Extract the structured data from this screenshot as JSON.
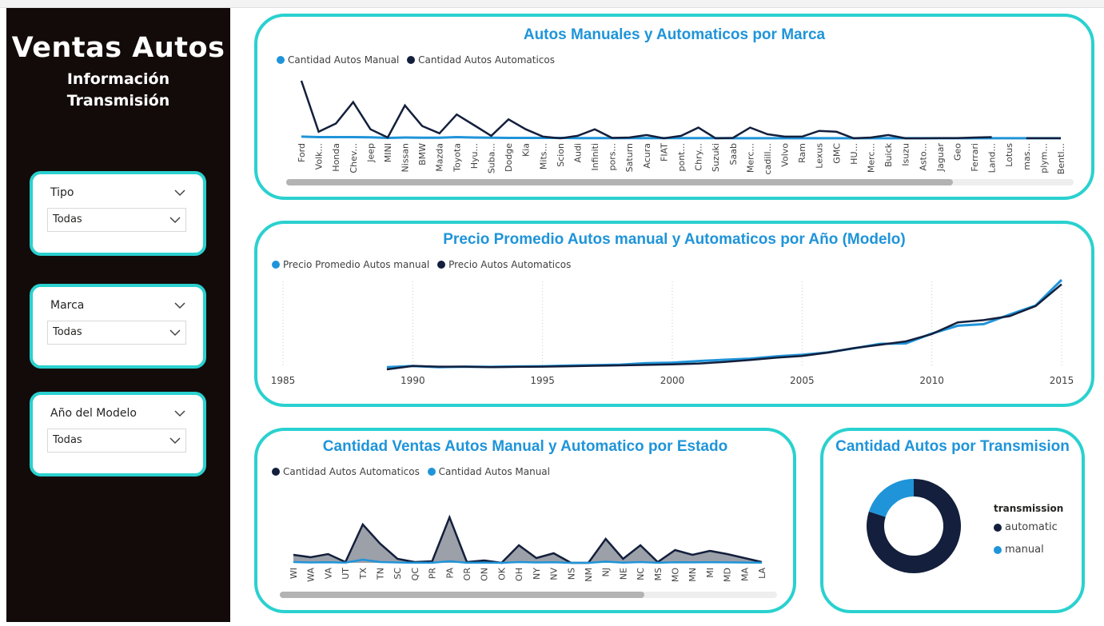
{
  "sidebar": {
    "title": "Ventas Autos",
    "subtitle_line1": "Información",
    "subtitle_line2": "Transmisión",
    "slicers": [
      {
        "label": "Tipo",
        "value": "Todas"
      },
      {
        "label": "Marca",
        "value": "Todas"
      },
      {
        "label": "Año del Modelo",
        "value": "Todas"
      }
    ]
  },
  "colors": {
    "manual": "#1f94d9",
    "automatic": "#131f3c",
    "accent": "#2ad1cf",
    "area_fill": "#8b8f99"
  },
  "chart_data": [
    {
      "id": "marca",
      "type": "line",
      "title": "Autos Manuales y Automaticos por Marca",
      "categories": [
        "Ford",
        "Volk...",
        "Honda",
        "Chev...",
        "Jeep",
        "MINI",
        "Nissan",
        "BMW",
        "Mazda",
        "Toyota",
        "Hyu...",
        "Suba...",
        "Dodge",
        "Kia",
        "Mits...",
        "Scion",
        "Audi",
        "Infiniti",
        "pors...",
        "Saturn",
        "Acura",
        "FIAT",
        "pont...",
        "Chry...",
        "Suzuki",
        "Saab",
        "Merc...",
        "cadill...",
        "Volvo",
        "Ram",
        "Lexus",
        "GMC",
        "HU...",
        "Merc...",
        "Buick",
        "Isuzu",
        "Asto...",
        "Jaguar",
        "Geo",
        "Ferrari",
        "Land...",
        "Lotus",
        "mas...",
        "plym...",
        "Bentl..."
      ],
      "series": [
        {
          "name": "Cantidad Autos Manual",
          "values": [
            2.0,
            1.5,
            1.5,
            1.5,
            1.2,
            0.5,
            1.0,
            0.8,
            0.8,
            1.5,
            1.0,
            0.8,
            0.5,
            0.5,
            0.5,
            0.5,
            0.3,
            0.3,
            0.2,
            0.2,
            0.3,
            0.3,
            0.2,
            0.2,
            0.2,
            0.1,
            0.1,
            0.1,
            0.1,
            0.1,
            0.1,
            0.1,
            0.1,
            0.1,
            0.1,
            0.1,
            0.1,
            0.1,
            0.1,
            0.1,
            0.1,
            0.1,
            0.1,
            0.1,
            0.1
          ]
        },
        {
          "name": "Cantidad Autos Automaticos",
          "values": [
            70,
            8,
            18,
            44,
            11,
            1,
            40,
            15,
            6,
            29,
            16,
            3,
            23,
            11,
            2,
            0,
            3,
            11,
            0.5,
            1,
            4,
            0,
            3,
            13,
            0,
            0.5,
            13,
            5,
            2,
            2,
            9,
            8,
            0,
            1,
            4,
            0,
            0,
            0.3,
            0.3,
            1,
            1.5,
            null,
            0.1,
            0.1,
            0.1
          ]
        }
      ]
    },
    {
      "id": "anio",
      "type": "line",
      "title": "Precio Promedio Autos manual y Automaticos por Año (Modelo)",
      "x_ticks": [
        "1985",
        "1990",
        "1995",
        "2000",
        "2005",
        "2010",
        "2015"
      ],
      "xlim": [
        1985,
        2015
      ],
      "series": [
        {
          "name": "Precio Promedio Autos manual",
          "x": [
            1989,
            1990,
            1991,
            1992,
            1993,
            1994,
            1995,
            1996,
            1997,
            1998,
            1999,
            2000,
            2001,
            2002,
            2003,
            2004,
            2005,
            2006,
            2007,
            2008,
            2009,
            2010,
            2011,
            2012,
            2013,
            2014,
            2015
          ],
          "values": [
            1.0,
            1.5,
            1.0,
            1.2,
            1.1,
            1.3,
            1.4,
            1.7,
            1.9,
            2.1,
            2.8,
            3.0,
            3.7,
            4.3,
            4.8,
            5.8,
            6.5,
            7.6,
            9.4,
            11.4,
            11.6,
            16.0,
            19.5,
            20.2,
            24.5,
            28.5,
            40.0
          ]
        },
        {
          "name": "Precio Autos Automaticos",
          "x": [
            1989,
            1990,
            1991,
            1992,
            1993,
            1994,
            1995,
            1996,
            1997,
            1998,
            1999,
            2000,
            2001,
            2002,
            2003,
            2004,
            2005,
            2006,
            2007,
            2008,
            2009,
            2010,
            2011,
            2012,
            2013,
            2014,
            2015
          ],
          "values": [
            0.0,
            1.5,
            1.2,
            1.2,
            1.0,
            1.1,
            1.2,
            1.4,
            1.6,
            1.8,
            2.0,
            2.2,
            2.6,
            3.3,
            4.2,
            5.2,
            6.0,
            7.5,
            9.5,
            11.0,
            12.5,
            15.8,
            21.0,
            22.0,
            23.8,
            28.3,
            38.0
          ]
        }
      ]
    },
    {
      "id": "estado",
      "type": "area",
      "title": "Cantidad Ventas Autos Manual y Automatico por Estado",
      "categories": [
        "WI",
        "WA",
        "VA",
        "UT",
        "TX",
        "TN",
        "SC",
        "QC",
        "PR",
        "PA",
        "OR",
        "ON",
        "OK",
        "OH",
        "NY",
        "NV",
        "NS",
        "NM",
        "NJ",
        "NE",
        "NC",
        "MS",
        "MO",
        "MN",
        "MI",
        "MD",
        "MA",
        "LA"
      ],
      "series": [
        {
          "name": "Cantidad Autos Automaticos",
          "values": [
            10,
            7,
            11,
            1,
            48,
            24,
            5,
            1,
            2,
            57,
            1,
            3,
            0,
            22,
            6,
            12,
            0,
            0,
            30,
            5,
            22,
            1,
            16,
            10,
            15,
            11,
            6,
            1
          ]
        },
        {
          "name": "Cantidad Autos Manual",
          "values": [
            1,
            0.5,
            0.8,
            0.3,
            4,
            1,
            0.5,
            0.1,
            0.1,
            2,
            0.1,
            0.2,
            0,
            1,
            0.5,
            0.8,
            0,
            0,
            1.5,
            0.3,
            1,
            0.1,
            0.8,
            0.6,
            0.8,
            0.6,
            0.4,
            0.2
          ]
        }
      ]
    },
    {
      "id": "transmision",
      "type": "pie",
      "title": "Cantidad Autos por Transmision",
      "legend_title": "transmission",
      "labels": [
        "automatic",
        "manual"
      ],
      "values": [
        80,
        20
      ]
    }
  ]
}
